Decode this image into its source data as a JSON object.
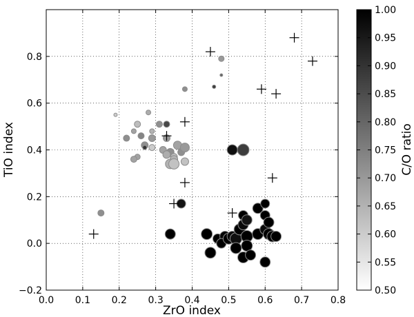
{
  "chart_data": {
    "type": "scatter",
    "xlabel": "ZrO index",
    "ylabel": "TiO index",
    "xlim": [
      0.0,
      0.8
    ],
    "ylim": [
      -0.2,
      1.0
    ],
    "xticks": [
      "0.0",
      "0.1",
      "0.2",
      "0.3",
      "0.4",
      "0.5",
      "0.6",
      "0.7",
      "0.8"
    ],
    "yticks": [
      "−0.2",
      "0.0",
      "0.2",
      "0.4",
      "0.6",
      "0.8"
    ],
    "grid": true,
    "colorbar": {
      "label": "C/O ratio",
      "range": [
        0.5,
        1.0
      ],
      "ticks": [
        "0.50",
        "0.55",
        "0.60",
        "0.65",
        "0.70",
        "0.75",
        "0.80",
        "0.85",
        "0.90",
        "0.95",
        "1.00"
      ],
      "colormap": "gray_r"
    },
    "plus_markers": [
      {
        "x": 0.68,
        "y": 0.88
      },
      {
        "x": 0.73,
        "y": 0.78
      },
      {
        "x": 0.45,
        "y": 0.82
      },
      {
        "x": 0.59,
        "y": 0.66
      },
      {
        "x": 0.63,
        "y": 0.64
      },
      {
        "x": 0.38,
        "y": 0.52
      },
      {
        "x": 0.33,
        "y": 0.46
      },
      {
        "x": 0.38,
        "y": 0.26
      },
      {
        "x": 0.35,
        "y": 0.17
      },
      {
        "x": 0.62,
        "y": 0.28
      },
      {
        "x": 0.51,
        "y": 0.13
      },
      {
        "x": 0.13,
        "y": 0.04
      }
    ],
    "points": [
      {
        "x": 0.48,
        "y": 0.79,
        "c": 0.7,
        "s": 4
      },
      {
        "x": 0.48,
        "y": 0.72,
        "c": 0.8,
        "s": 2
      },
      {
        "x": 0.46,
        "y": 0.67,
        "c": 0.88,
        "s": 2.5
      },
      {
        "x": 0.38,
        "y": 0.66,
        "c": 0.72,
        "s": 3.5
      },
      {
        "x": 0.28,
        "y": 0.56,
        "c": 0.66,
        "s": 3.5
      },
      {
        "x": 0.19,
        "y": 0.55,
        "c": 0.6,
        "s": 2.5
      },
      {
        "x": 0.25,
        "y": 0.51,
        "c": 0.63,
        "s": 4.5
      },
      {
        "x": 0.31,
        "y": 0.51,
        "c": 0.72,
        "s": 4.5
      },
      {
        "x": 0.33,
        "y": 0.51,
        "c": 0.86,
        "s": 4.5
      },
      {
        "x": 0.24,
        "y": 0.48,
        "c": 0.68,
        "s": 3.5
      },
      {
        "x": 0.29,
        "y": 0.48,
        "c": 0.65,
        "s": 3.5
      },
      {
        "x": 0.22,
        "y": 0.45,
        "c": 0.72,
        "s": 4.5
      },
      {
        "x": 0.26,
        "y": 0.46,
        "c": 0.74,
        "s": 4.5
      },
      {
        "x": 0.29,
        "y": 0.45,
        "c": 0.7,
        "s": 5
      },
      {
        "x": 0.33,
        "y": 0.45,
        "c": 0.7,
        "s": 5
      },
      {
        "x": 0.27,
        "y": 0.42,
        "c": 0.72,
        "s": 5
      },
      {
        "x": 0.27,
        "y": 0.41,
        "c": 0.9,
        "s": 3
      },
      {
        "x": 0.29,
        "y": 0.41,
        "c": 0.6,
        "s": 4.5
      },
      {
        "x": 0.36,
        "y": 0.42,
        "c": 0.68,
        "s": 6
      },
      {
        "x": 0.37,
        "y": 0.39,
        "c": 0.72,
        "s": 5
      },
      {
        "x": 0.38,
        "y": 0.41,
        "c": 0.7,
        "s": 6.5
      },
      {
        "x": 0.32,
        "y": 0.4,
        "c": 0.68,
        "s": 5
      },
      {
        "x": 0.34,
        "y": 0.39,
        "c": 0.72,
        "s": 5.5
      },
      {
        "x": 0.33,
        "y": 0.38,
        "c": 0.66,
        "s": 5.5
      },
      {
        "x": 0.25,
        "y": 0.37,
        "c": 0.68,
        "s": 4
      },
      {
        "x": 0.24,
        "y": 0.36,
        "c": 0.68,
        "s": 4.5
      },
      {
        "x": 0.35,
        "y": 0.37,
        "c": 0.62,
        "s": 5
      },
      {
        "x": 0.35,
        "y": 0.36,
        "c": 0.65,
        "s": 5.5
      },
      {
        "x": 0.38,
        "y": 0.35,
        "c": 0.62,
        "s": 5.5
      },
      {
        "x": 0.34,
        "y": 0.34,
        "c": 0.65,
        "s": 7
      },
      {
        "x": 0.35,
        "y": 0.34,
        "c": 0.62,
        "s": 7.5
      },
      {
        "x": 0.51,
        "y": 0.4,
        "c": 0.97,
        "s": 7.5
      },
      {
        "x": 0.54,
        "y": 0.4,
        "c": 0.88,
        "s": 8.5
      },
      {
        "x": 0.37,
        "y": 0.17,
        "c": 0.96,
        "s": 6.5
      },
      {
        "x": 0.15,
        "y": 0.13,
        "c": 0.72,
        "s": 4.5
      },
      {
        "x": 0.34,
        "y": 0.04,
        "c": 1.0,
        "s": 7.5
      },
      {
        "x": 0.44,
        "y": 0.04,
        "c": 1.0,
        "s": 8
      },
      {
        "x": 0.45,
        "y": -0.04,
        "c": 1.0,
        "s": 8
      },
      {
        "x": 0.47,
        "y": 0.02,
        "c": 1.0,
        "s": 7
      },
      {
        "x": 0.49,
        "y": 0.03,
        "c": 0.99,
        "s": 7.5
      },
      {
        "x": 0.48,
        "y": 0.0,
        "c": 1.0,
        "s": 7
      },
      {
        "x": 0.5,
        "y": 0.02,
        "c": 1.0,
        "s": 8
      },
      {
        "x": 0.51,
        "y": 0.03,
        "c": 0.98,
        "s": 7.5
      },
      {
        "x": 0.52,
        "y": 0.02,
        "c": 0.97,
        "s": 8.5
      },
      {
        "x": 0.53,
        "y": 0.06,
        "c": 1.0,
        "s": 8
      },
      {
        "x": 0.54,
        "y": 0.08,
        "c": 0.98,
        "s": 7.5
      },
      {
        "x": 0.54,
        "y": 0.12,
        "c": 1.0,
        "s": 7
      },
      {
        "x": 0.55,
        "y": 0.1,
        "c": 0.96,
        "s": 7.5
      },
      {
        "x": 0.55,
        "y": 0.03,
        "c": 1.0,
        "s": 8.5
      },
      {
        "x": 0.55,
        "y": -0.01,
        "c": 1.0,
        "s": 8
      },
      {
        "x": 0.52,
        "y": -0.02,
        "c": 1.0,
        "s": 8
      },
      {
        "x": 0.54,
        "y": -0.06,
        "c": 1.0,
        "s": 8
      },
      {
        "x": 0.56,
        "y": -0.05,
        "c": 1.0,
        "s": 7.5
      },
      {
        "x": 0.58,
        "y": 0.04,
        "c": 1.0,
        "s": 8
      },
      {
        "x": 0.58,
        "y": 0.15,
        "c": 1.0,
        "s": 7.5
      },
      {
        "x": 0.6,
        "y": 0.17,
        "c": 1.0,
        "s": 6.5
      },
      {
        "x": 0.6,
        "y": 0.12,
        "c": 1.0,
        "s": 7
      },
      {
        "x": 0.6,
        "y": 0.06,
        "c": 0.98,
        "s": 7.5
      },
      {
        "x": 0.61,
        "y": 0.09,
        "c": 1.0,
        "s": 7.5
      },
      {
        "x": 0.61,
        "y": 0.04,
        "c": 1.0,
        "s": 8
      },
      {
        "x": 0.62,
        "y": 0.03,
        "c": 1.0,
        "s": 8
      },
      {
        "x": 0.63,
        "y": 0.03,
        "c": 1.0,
        "s": 7.5
      },
      {
        "x": 0.6,
        "y": -0.08,
        "c": 1.0,
        "s": 7.5
      }
    ]
  }
}
